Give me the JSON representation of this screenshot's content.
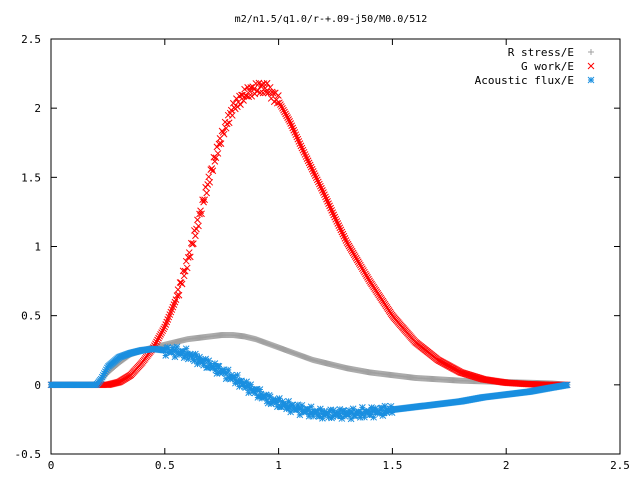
{
  "chart_data": {
    "type": "scatter",
    "title": "m2/n1.5/q1.0/r-+.09-j50/M0.0/512",
    "xlabel": "",
    "ylabel": "",
    "xlim": [
      0,
      2.5
    ],
    "ylim": [
      -0.5,
      2.5
    ],
    "x_ticks": [
      "0",
      "0.5",
      "1",
      "1.5",
      "2",
      "2.5"
    ],
    "y_ticks": [
      "-0.5",
      "0",
      "0.5",
      "1",
      "1.5",
      "2",
      "2.5"
    ],
    "legend_position": "top-right",
    "grid": false,
    "series": [
      {
        "name": "R stress/E",
        "marker": "plus",
        "color": "#a0a0a0",
        "x": [
          0.0,
          0.1,
          0.2,
          0.25,
          0.3,
          0.35,
          0.4,
          0.45,
          0.5,
          0.55,
          0.6,
          0.65,
          0.7,
          0.75,
          0.8,
          0.85,
          0.9,
          0.95,
          1.0,
          1.05,
          1.1,
          1.15,
          1.2,
          1.3,
          1.4,
          1.5,
          1.6,
          1.7,
          1.8,
          1.9,
          2.0,
          2.1,
          2.2,
          2.27
        ],
        "y": [
          0.0,
          0.0,
          0.0,
          0.09,
          0.16,
          0.22,
          0.25,
          0.27,
          0.29,
          0.31,
          0.33,
          0.34,
          0.35,
          0.36,
          0.36,
          0.35,
          0.33,
          0.3,
          0.27,
          0.24,
          0.21,
          0.18,
          0.16,
          0.12,
          0.09,
          0.07,
          0.05,
          0.04,
          0.03,
          0.025,
          0.02,
          0.015,
          0.01,
          0.0
        ]
      },
      {
        "name": "G work/E",
        "marker": "cross",
        "color": "#ff0000",
        "x": [
          0.0,
          0.1,
          0.2,
          0.25,
          0.3,
          0.35,
          0.4,
          0.45,
          0.5,
          0.55,
          0.6,
          0.65,
          0.7,
          0.75,
          0.8,
          0.85,
          0.9,
          0.93,
          0.95,
          1.0,
          1.05,
          1.1,
          1.15,
          1.2,
          1.25,
          1.3,
          1.4,
          1.5,
          1.6,
          1.7,
          1.8,
          1.9,
          2.0,
          2.1,
          2.2,
          2.27
        ],
        "y": [
          0.0,
          0.0,
          0.0,
          0.0,
          0.02,
          0.07,
          0.16,
          0.27,
          0.42,
          0.62,
          0.89,
          1.2,
          1.52,
          1.8,
          2.0,
          2.1,
          2.14,
          2.15,
          2.14,
          2.05,
          1.9,
          1.72,
          1.55,
          1.38,
          1.2,
          1.03,
          0.75,
          0.5,
          0.31,
          0.18,
          0.09,
          0.04,
          0.015,
          0.005,
          0.0,
          0.0
        ]
      },
      {
        "name": "Acoustic flux/E",
        "marker": "star",
        "color": "#1a8fe0",
        "x": [
          0.0,
          0.1,
          0.2,
          0.22,
          0.25,
          0.3,
          0.35,
          0.4,
          0.45,
          0.5,
          0.55,
          0.6,
          0.65,
          0.7,
          0.75,
          0.8,
          0.85,
          0.9,
          0.95,
          1.0,
          1.05,
          1.1,
          1.15,
          1.2,
          1.3,
          1.4,
          1.5,
          1.6,
          1.7,
          1.8,
          1.9,
          2.0,
          2.1,
          2.2,
          2.27
        ],
        "y": [
          0.0,
          0.0,
          0.0,
          0.04,
          0.13,
          0.2,
          0.23,
          0.25,
          0.26,
          0.25,
          0.24,
          0.22,
          0.18,
          0.14,
          0.1,
          0.05,
          0.0,
          -0.05,
          -0.1,
          -0.13,
          -0.16,
          -0.18,
          -0.2,
          -0.21,
          -0.21,
          -0.2,
          -0.18,
          -0.16,
          -0.14,
          -0.12,
          -0.09,
          -0.07,
          -0.05,
          -0.02,
          0.0
        ]
      }
    ]
  }
}
